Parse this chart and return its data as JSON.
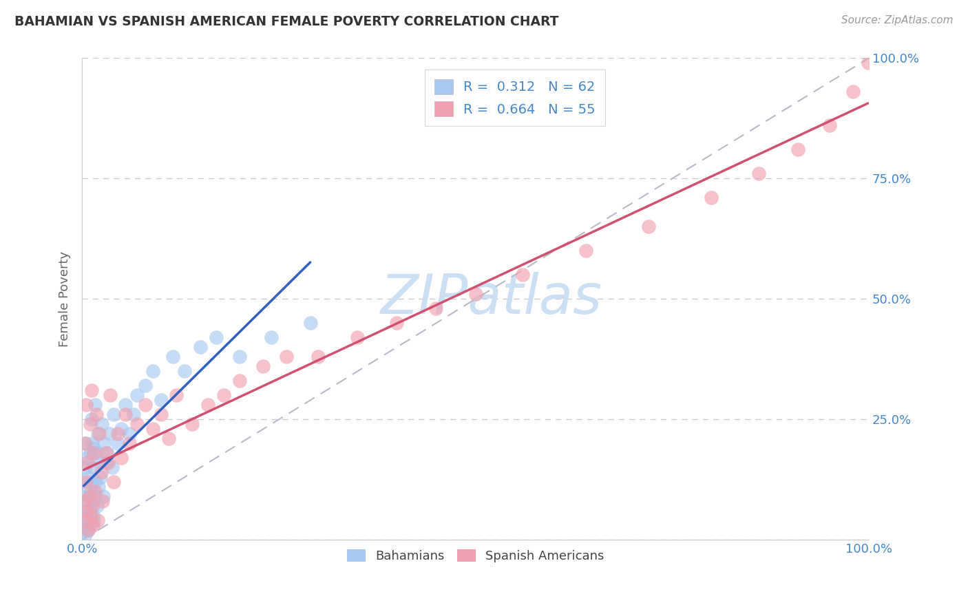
{
  "title": "BAHAMIAN VS SPANISH AMERICAN FEMALE POVERTY CORRELATION CHART",
  "source": "Source: ZipAtlas.com",
  "ylabel": "Female Poverty",
  "xlim": [
    0,
    1
  ],
  "ylim": [
    0,
    1
  ],
  "bahamian_R": 0.312,
  "bahamian_N": 62,
  "spanish_R": 0.664,
  "spanish_N": 55,
  "bahamian_color": "#a8c8f0",
  "spanish_color": "#f0a0b0",
  "bahamian_line_color": "#3060c0",
  "spanish_line_color": "#d05070",
  "identity_line_color": "#b8b8c8",
  "background_color": "#ffffff",
  "grid_color": "#cccccc",
  "watermark": "ZIPatlas",
  "watermark_color": "#cce0f5",
  "title_color": "#333333",
  "axis_label_color": "#666666",
  "tick_label_color": "#4488cc",
  "source_color": "#999999",
  "bahamian_x": [
    0.002,
    0.003,
    0.003,
    0.004,
    0.004,
    0.005,
    0.005,
    0.005,
    0.006,
    0.006,
    0.007,
    0.007,
    0.008,
    0.008,
    0.009,
    0.009,
    0.01,
    0.01,
    0.01,
    0.011,
    0.011,
    0.012,
    0.012,
    0.013,
    0.013,
    0.014,
    0.014,
    0.015,
    0.015,
    0.016,
    0.016,
    0.017,
    0.018,
    0.019,
    0.02,
    0.021,
    0.022,
    0.023,
    0.025,
    0.027,
    0.028,
    0.03,
    0.032,
    0.035,
    0.038,
    0.04,
    0.045,
    0.05,
    0.055,
    0.06,
    0.065,
    0.07,
    0.08,
    0.09,
    0.1,
    0.115,
    0.13,
    0.15,
    0.17,
    0.2,
    0.24,
    0.29
  ],
  "bahamian_y": [
    0.02,
    0.15,
    0.05,
    0.08,
    0.01,
    0.2,
    0.03,
    0.06,
    0.17,
    0.09,
    0.04,
    0.11,
    0.02,
    0.13,
    0.06,
    0.09,
    0.05,
    0.18,
    0.07,
    0.12,
    0.03,
    0.1,
    0.25,
    0.08,
    0.2,
    0.05,
    0.15,
    0.04,
    0.19,
    0.12,
    0.28,
    0.09,
    0.18,
    0.07,
    0.22,
    0.11,
    0.16,
    0.13,
    0.24,
    0.09,
    0.2,
    0.16,
    0.18,
    0.22,
    0.15,
    0.26,
    0.2,
    0.23,
    0.28,
    0.22,
    0.26,
    0.3,
    0.32,
    0.35,
    0.29,
    0.38,
    0.35,
    0.4,
    0.42,
    0.38,
    0.42,
    0.45
  ],
  "spanish_x": [
    0.002,
    0.003,
    0.004,
    0.005,
    0.005,
    0.006,
    0.007,
    0.008,
    0.009,
    0.01,
    0.011,
    0.012,
    0.013,
    0.014,
    0.015,
    0.016,
    0.018,
    0.02,
    0.022,
    0.024,
    0.026,
    0.03,
    0.033,
    0.036,
    0.04,
    0.045,
    0.05,
    0.055,
    0.06,
    0.07,
    0.08,
    0.09,
    0.1,
    0.11,
    0.12,
    0.14,
    0.16,
    0.18,
    0.2,
    0.23,
    0.26,
    0.3,
    0.35,
    0.4,
    0.45,
    0.5,
    0.56,
    0.64,
    0.72,
    0.8,
    0.86,
    0.91,
    0.95,
    0.98,
    0.999
  ],
  "spanish_y": [
    0.08,
    0.2,
    0.04,
    0.12,
    0.28,
    0.06,
    0.16,
    0.02,
    0.09,
    0.24,
    0.05,
    0.31,
    0.07,
    0.03,
    0.18,
    0.1,
    0.26,
    0.04,
    0.22,
    0.14,
    0.08,
    0.18,
    0.16,
    0.3,
    0.12,
    0.22,
    0.17,
    0.26,
    0.2,
    0.24,
    0.28,
    0.23,
    0.26,
    0.21,
    0.3,
    0.24,
    0.28,
    0.3,
    0.33,
    0.36,
    0.38,
    0.38,
    0.42,
    0.45,
    0.48,
    0.51,
    0.55,
    0.6,
    0.65,
    0.71,
    0.76,
    0.81,
    0.86,
    0.93,
    0.99
  ]
}
